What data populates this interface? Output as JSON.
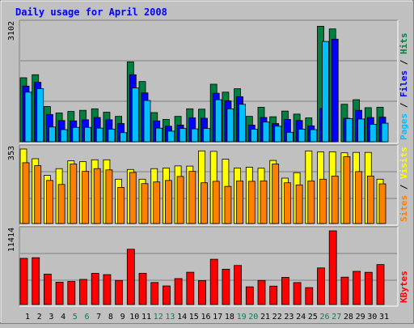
{
  "chart_data": [
    {
      "type": "bar",
      "title": "Daily usage for April 2008",
      "categories": [
        "1",
        "2",
        "3",
        "4",
        "5",
        "6",
        "7",
        "8",
        "9",
        "10",
        "11",
        "12",
        "13",
        "14",
        "15",
        "16",
        "17",
        "18",
        "19",
        "20",
        "21",
        "22",
        "23",
        "24",
        "25",
        "26",
        "27",
        "28",
        "29",
        "30",
        "31"
      ],
      "weekend_days": [
        "5",
        "6",
        "12",
        "13",
        "19",
        "20",
        "26",
        "27"
      ],
      "ylabel": [
        "Pages",
        "Files",
        "Hits"
      ],
      "ylim": [
        0,
        3102
      ],
      "y_tick_label": "3102",
      "grid": true,
      "series": [
        {
          "name": "Hits",
          "color": "#008040",
          "values": [
            1690,
            1770,
            930,
            760,
            800,
            830,
            870,
            780,
            670,
            2110,
            1590,
            770,
            590,
            670,
            870,
            860,
            1520,
            1310,
            1400,
            670,
            910,
            660,
            810,
            730,
            630,
            3050,
            2980,
            990,
            1110,
            900,
            910
          ]
        },
        {
          "name": "Files",
          "color": "#0000ff",
          "values": [
            1470,
            1570,
            720,
            560,
            550,
            580,
            640,
            580,
            480,
            1770,
            1290,
            550,
            410,
            440,
            630,
            620,
            1280,
            1080,
            1190,
            440,
            640,
            480,
            590,
            560,
            420,
            880,
            2710,
            620,
            830,
            640,
            650
          ]
        },
        {
          "name": "Pages",
          "color": "#00c0ff",
          "values": [
            1310,
            1400,
            390,
            320,
            380,
            380,
            360,
            330,
            240,
            1420,
            1090,
            360,
            280,
            350,
            340,
            350,
            1110,
            870,
            990,
            330,
            520,
            410,
            250,
            330,
            320,
            2650,
            0,
            610,
            600,
            460,
            490
          ]
        }
      ]
    },
    {
      "type": "bar",
      "categories": [
        "1",
        "2",
        "3",
        "4",
        "5",
        "6",
        "7",
        "8",
        "9",
        "10",
        "11",
        "12",
        "13",
        "14",
        "15",
        "16",
        "17",
        "18",
        "19",
        "20",
        "21",
        "22",
        "23",
        "24",
        "25",
        "26",
        "27",
        "28",
        "29",
        "30",
        "31"
      ],
      "ylabel": [
        "Sites",
        "Visits"
      ],
      "ylim": [
        0,
        353
      ],
      "y_tick_label": "353",
      "grid": true,
      "series": [
        {
          "name": "Visits",
          "color": "#ffff00",
          "values": [
            353,
            307,
            228,
            260,
            297,
            293,
            302,
            302,
            210,
            256,
            210,
            260,
            263,
            273,
            272,
            344,
            342,
            305,
            263,
            267,
            262,
            299,
            215,
            241,
            344,
            339,
            340,
            335,
            337,
            337,
            210
          ]
        },
        {
          "name": "Sites",
          "color": "#ff8000",
          "values": [
            288,
            274,
            204,
            185,
            282,
            247,
            260,
            254,
            171,
            242,
            189,
            197,
            204,
            223,
            247,
            193,
            200,
            176,
            202,
            200,
            202,
            282,
            193,
            183,
            202,
            210,
            225,
            317,
            246,
            225,
            188
          ]
        }
      ]
    },
    {
      "type": "bar",
      "categories": [
        "1",
        "2",
        "3",
        "4",
        "5",
        "6",
        "7",
        "8",
        "9",
        "10",
        "11",
        "12",
        "13",
        "14",
        "15",
        "16",
        "17",
        "18",
        "19",
        "20",
        "21",
        "22",
        "23",
        "24",
        "25",
        "26",
        "27",
        "28",
        "29",
        "30",
        "31"
      ],
      "ylabel": [
        "KBytes"
      ],
      "ylim": [
        0,
        11414
      ],
      "y_tick_label": "11414",
      "grid": true,
      "series": [
        {
          "name": "KBytes",
          "color": "#ff0000",
          "values": [
            7150,
            7250,
            4700,
            3460,
            3570,
            3890,
            4830,
            4630,
            3730,
            8560,
            4830,
            3410,
            2880,
            4020,
            5000,
            3710,
            7010,
            5470,
            6050,
            2740,
            3730,
            2850,
            4200,
            3400,
            2620,
            5670,
            11414,
            4240,
            5140,
            4990,
            6190
          ]
        }
      ]
    }
  ]
}
